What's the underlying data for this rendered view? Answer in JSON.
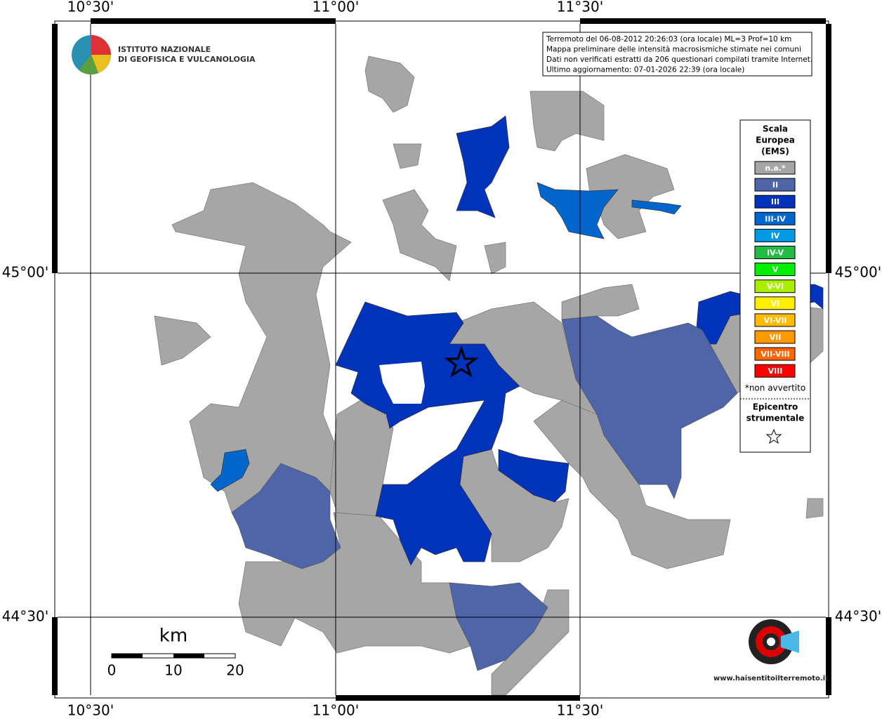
{
  "logo": {
    "line1": "ISTITUTO NAZIONALE",
    "line2": "DI GEOFISICA E VULCANOLOGIA"
  },
  "info": {
    "lines": [
      "Terremoto del 06-08-2012 20:26:03 (ora locale) ML=3 Prof=10 km",
      "Mappa preliminare delle intensità macrosismiche stimate nei comuni",
      "Dati non verificati estratti da 206 questionari compilati tramite Internet.",
      "Ultimo aggiornamento: 07-01-2026 22:39 (ora locale)"
    ]
  },
  "grid": {
    "top": [
      "10°30'",
      "11°00'",
      "11°30'"
    ],
    "bottom": [
      "10°30'",
      "11°00'",
      "11°30'"
    ],
    "left": [
      "45°00'",
      "44°30'"
    ],
    "right": [
      "45°00'",
      "44°30'"
    ]
  },
  "legend": {
    "title": [
      "Scala",
      "Europea",
      "(EMS)"
    ],
    "items": [
      {
        "label": "n.a.*",
        "color": "#a6a6a6"
      },
      {
        "label": "II",
        "color": "#4f65aa"
      },
      {
        "label": "III",
        "color": "#0033bb"
      },
      {
        "label": "III-IV",
        "color": "#0066cc"
      },
      {
        "label": "IV",
        "color": "#0099e6"
      },
      {
        "label": "IV-V",
        "color": "#22bb44"
      },
      {
        "label": "V",
        "color": "#00ee00"
      },
      {
        "label": "V-VI",
        "color": "#aaee00"
      },
      {
        "label": "VI",
        "color": "#ffee00"
      },
      {
        "label": "VI-VII",
        "color": "#ffbb00"
      },
      {
        "label": "VII",
        "color": "#ff9900"
      },
      {
        "label": "VII-VIII",
        "color": "#ff6600"
      },
      {
        "label": "VIII",
        "color": "#ff0000"
      }
    ],
    "note": "*non avvertito",
    "epicenter": [
      "Epicentro",
      "strumentale"
    ]
  },
  "scale_bar": {
    "unit": "km",
    "labels": [
      "0",
      "10",
      "20"
    ]
  },
  "site_logo": {
    "text": "www.haisentitoilterremoto.it"
  }
}
